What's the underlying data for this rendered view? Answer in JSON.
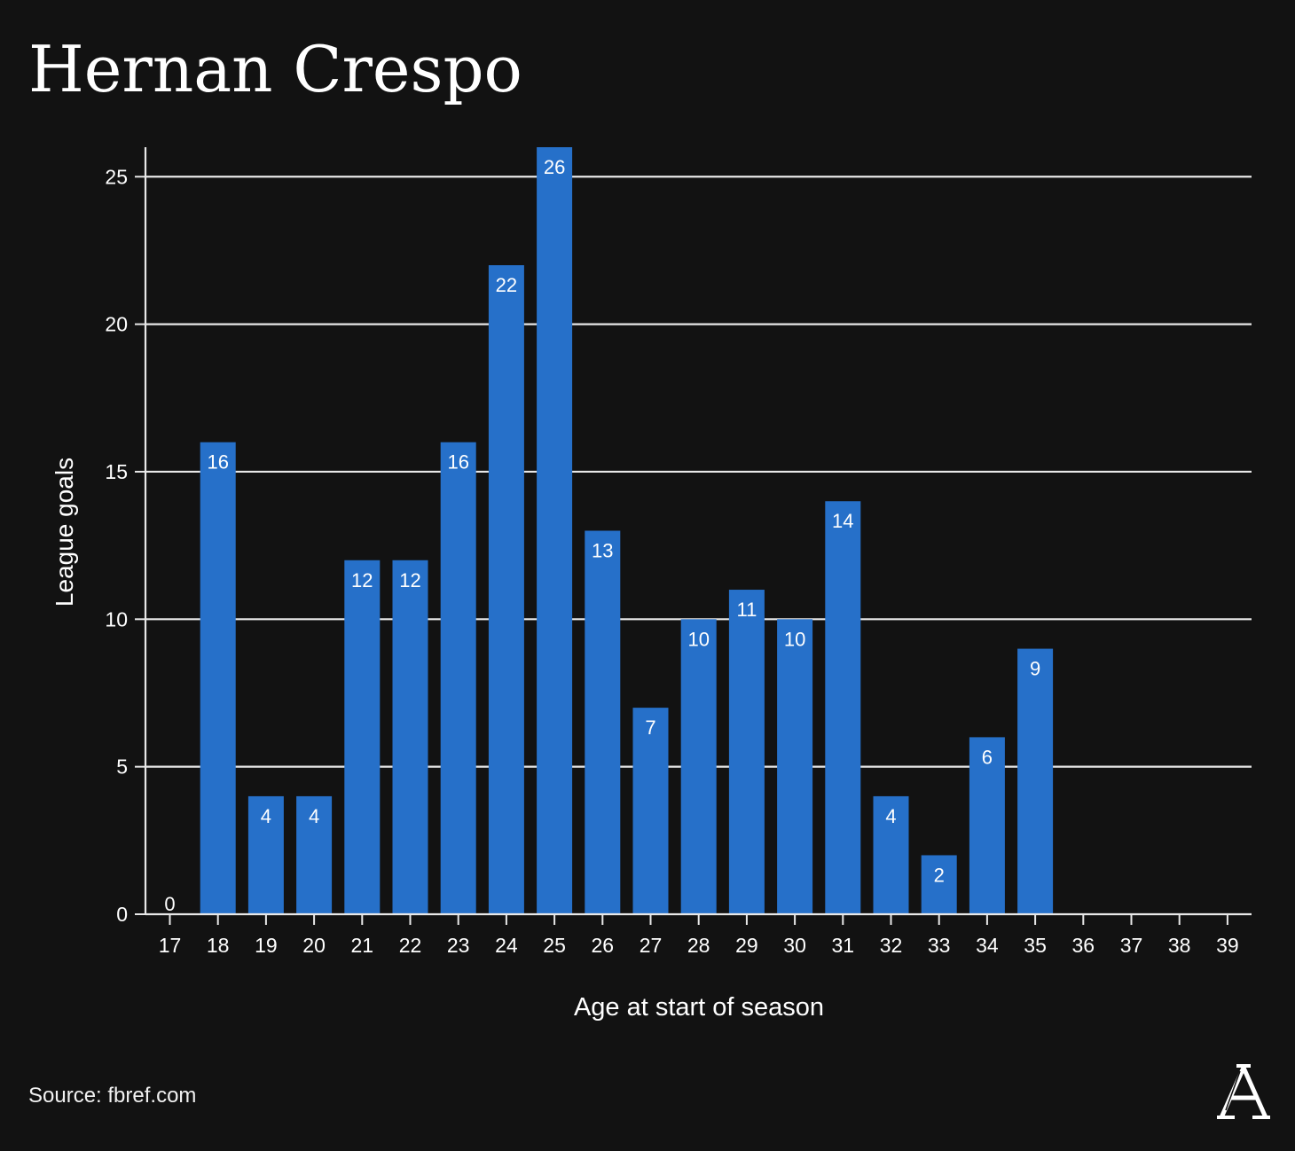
{
  "title": "Hernan Crespo",
  "source": "Source: fbref.com",
  "logo_letter": "A",
  "colors": {
    "background": "#121212",
    "bar": "#2670c9",
    "grid": "#e8e8e8",
    "text": "#ffffff"
  },
  "chart_data": {
    "type": "bar",
    "title": "Hernan Crespo",
    "xlabel": "Age at start of season",
    "ylabel": "League goals",
    "categories": [
      "17",
      "18",
      "19",
      "20",
      "21",
      "22",
      "23",
      "24",
      "25",
      "26",
      "27",
      "28",
      "29",
      "30",
      "31",
      "32",
      "33",
      "34",
      "35",
      "36",
      "37",
      "38",
      "39"
    ],
    "values": [
      0,
      16,
      4,
      4,
      12,
      12,
      16,
      22,
      26,
      13,
      7,
      10,
      11,
      10,
      14,
      4,
      2,
      6,
      9,
      null,
      null,
      null,
      null
    ],
    "data_labels": [
      "0",
      "16",
      "4",
      "4",
      "12",
      "12",
      "16",
      "22",
      "26",
      "13",
      "7",
      "10",
      "11",
      "10",
      "14",
      "4",
      "2",
      "6",
      "9",
      "",
      "",
      "",
      ""
    ],
    "ylim": [
      0,
      26
    ],
    "yticks": [
      0,
      5,
      10,
      15,
      20,
      25
    ],
    "grid": true,
    "legend": "none"
  }
}
